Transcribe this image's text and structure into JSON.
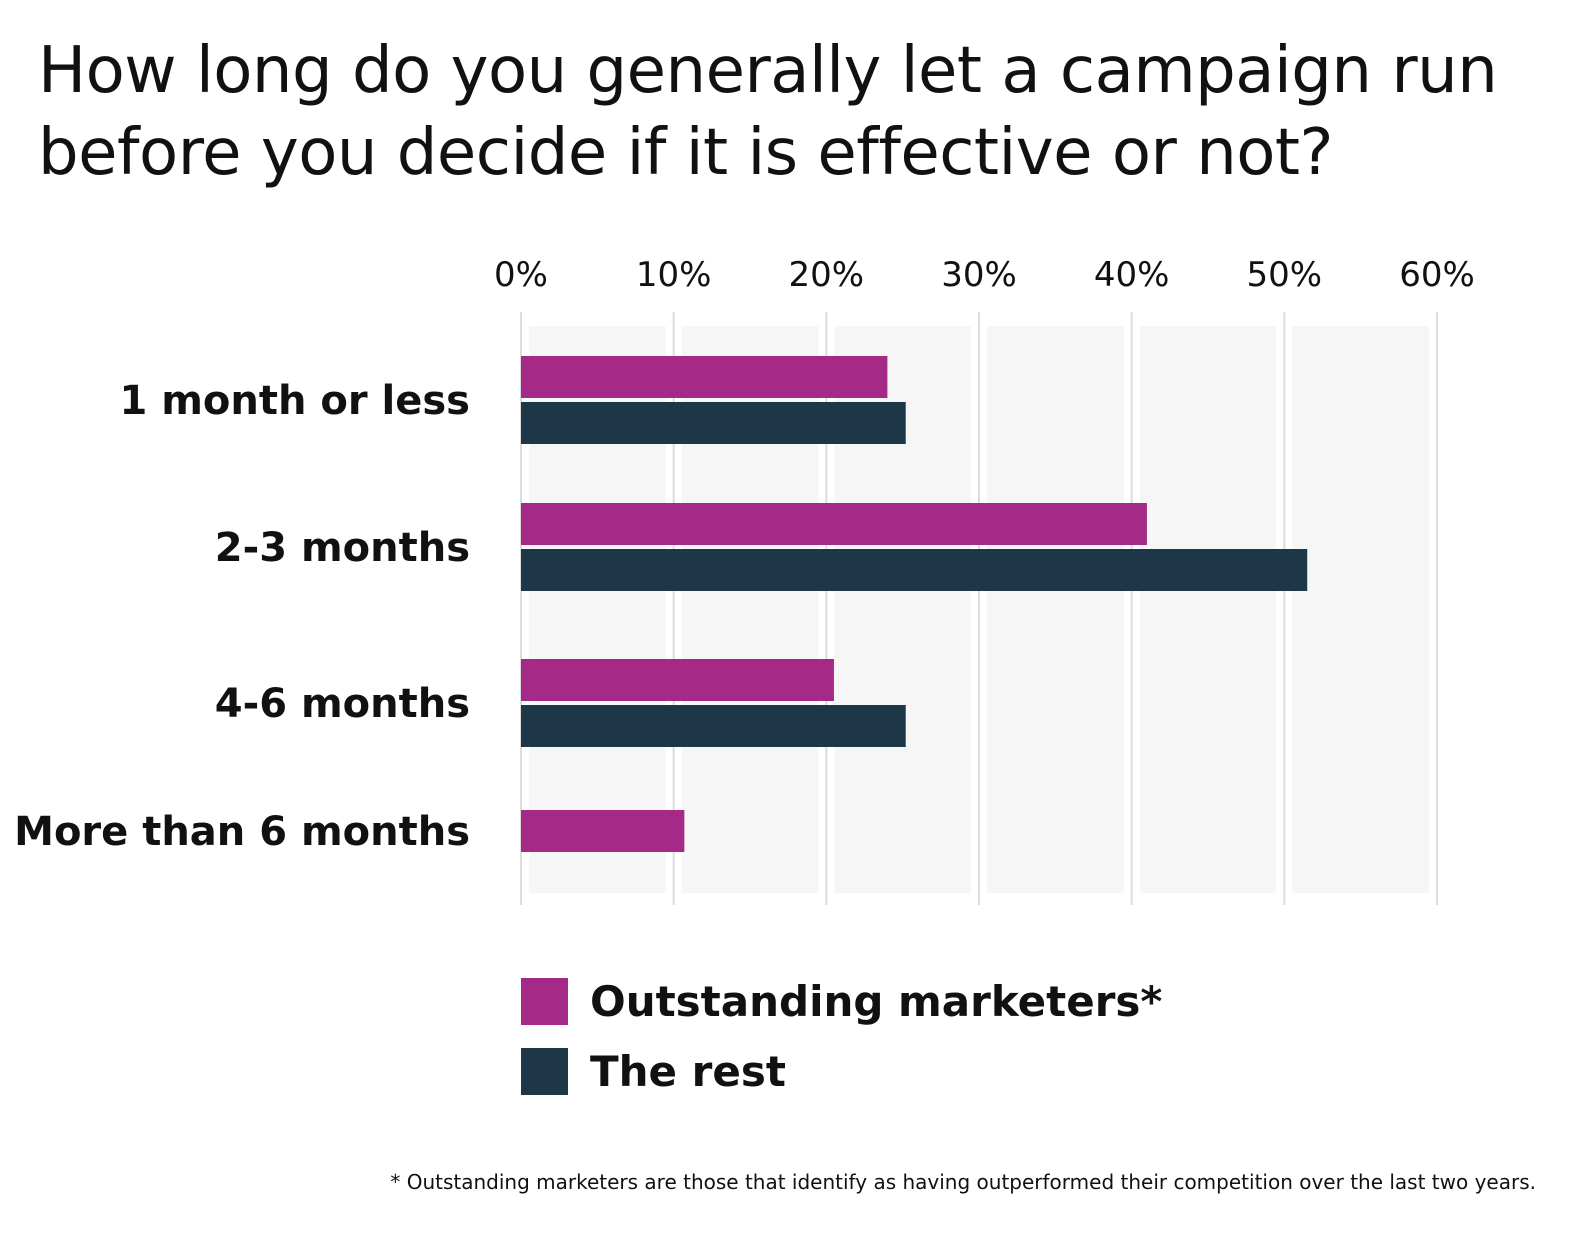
{
  "chart_data": {
    "type": "bar",
    "orientation": "horizontal",
    "title": "How long do you generally let a campaign run before you decide if it is effective or not?",
    "categories": [
      "1 month or less",
      "2-3 months",
      "4-6 months",
      "More than 6 months"
    ],
    "series": [
      {
        "name": "Outstanding marketers*",
        "color": "#a52a87",
        "values": [
          24,
          41,
          20.5,
          10.7
        ]
      },
      {
        "name": "The rest",
        "color": "#1e3748",
        "values": [
          25.2,
          51.5,
          25.2,
          null
        ]
      }
    ],
    "xlim": [
      0,
      60
    ],
    "xticks": [
      "0%",
      "10%",
      "20%",
      "30%",
      "40%",
      "50%",
      "60%"
    ],
    "grid": true,
    "legend_placement": "bottom",
    "footnote": "* Outstanding marketers are those that identify as having outperformed their competition over the last two years."
  }
}
